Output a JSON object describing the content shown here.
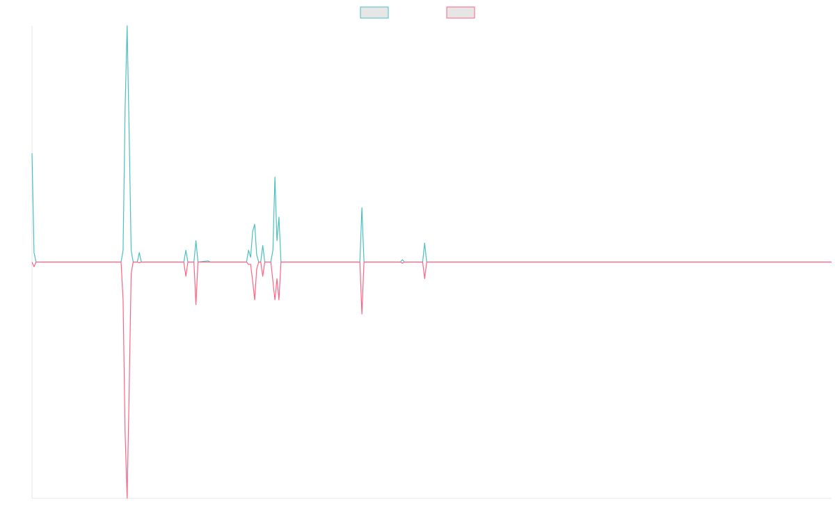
{
  "colors": {
    "series_a": "#4bc0c0",
    "series_b": "#ff6384",
    "legend_fill": "#e6e6e6",
    "axis": "#e6e6e6",
    "background": "#ffffff"
  },
  "legend": {
    "placement": "top-center",
    "items": [
      {
        "label": "",
        "color": "#4bc0c0"
      },
      {
        "label": "",
        "color": "#ff6384"
      }
    ]
  },
  "chart_data": {
    "type": "line",
    "title": "",
    "xlabel": "",
    "ylabel": "",
    "grid": false,
    "x_count": 395,
    "ylim": [
      -1,
      1
    ],
    "series": [
      {
        "color": "#4bc0c0",
        "points": [
          [
            0,
            0.46
          ],
          [
            1,
            0.04
          ],
          [
            2,
            0
          ],
          [
            44,
            0
          ],
          [
            45,
            0.05
          ],
          [
            46,
            0.65
          ],
          [
            47,
            1.0
          ],
          [
            48,
            0.55
          ],
          [
            49,
            0.05
          ],
          [
            50,
            0
          ],
          [
            52,
            0
          ],
          [
            53,
            0.04
          ],
          [
            54,
            0
          ],
          [
            75,
            0
          ],
          [
            76,
            0.05
          ],
          [
            77,
            0
          ],
          [
            80,
            0
          ],
          [
            81,
            0.09
          ],
          [
            82,
            0
          ],
          [
            88,
            0
          ],
          [
            87,
            0.005
          ],
          [
            89,
            0
          ],
          [
            106,
            0
          ],
          [
            107,
            0.05
          ],
          [
            108,
            0.02
          ],
          [
            109,
            0.13
          ],
          [
            110,
            0.16
          ],
          [
            111,
            0.03
          ],
          [
            112,
            0
          ],
          [
            113,
            0
          ],
          [
            114,
            0.07
          ],
          [
            115,
            0
          ],
          [
            118,
            0
          ],
          [
            119,
            0.05
          ],
          [
            120,
            0.36
          ],
          [
            121,
            0.09
          ],
          [
            122,
            0.19
          ],
          [
            123,
            0
          ],
          [
            162,
            0
          ],
          [
            163,
            0.23
          ],
          [
            164,
            0
          ],
          [
            182,
            0
          ],
          [
            183,
            0.01
          ],
          [
            184,
            0
          ],
          [
            193,
            0
          ],
          [
            194,
            0.08
          ],
          [
            195,
            0
          ],
          [
            395,
            0
          ]
        ]
      },
      {
        "color": "#ff6384",
        "points": [
          [
            0,
            0
          ],
          [
            1,
            -0.02
          ],
          [
            2,
            0
          ],
          [
            44,
            0
          ],
          [
            45,
            -0.16
          ],
          [
            46,
            -0.72
          ],
          [
            47,
            -1.0
          ],
          [
            48,
            -0.55
          ],
          [
            49,
            -0.05
          ],
          [
            50,
            0
          ],
          [
            52,
            0
          ],
          [
            53,
            -0.003
          ],
          [
            54,
            0
          ],
          [
            75,
            0
          ],
          [
            76,
            -0.06
          ],
          [
            77,
            0
          ],
          [
            80,
            0
          ],
          [
            81,
            -0.18
          ],
          [
            82,
            0
          ],
          [
            106,
            0
          ],
          [
            107,
            -0.01
          ],
          [
            108,
            -0.01
          ],
          [
            109,
            -0.08
          ],
          [
            110,
            -0.16
          ],
          [
            111,
            -0.03
          ],
          [
            112,
            0
          ],
          [
            113,
            0
          ],
          [
            114,
            -0.06
          ],
          [
            115,
            0
          ],
          [
            118,
            0
          ],
          [
            119,
            -0.08
          ],
          [
            120,
            -0.16
          ],
          [
            121,
            -0.07
          ],
          [
            122,
            -0.16
          ],
          [
            123,
            0
          ],
          [
            162,
            0
          ],
          [
            163,
            -0.22
          ],
          [
            164,
            0
          ],
          [
            182,
            0
          ],
          [
            183,
            -0.005
          ],
          [
            184,
            0
          ],
          [
            193,
            0
          ],
          [
            194,
            -0.07
          ],
          [
            195,
            0
          ],
          [
            395,
            0
          ]
        ]
      }
    ]
  }
}
